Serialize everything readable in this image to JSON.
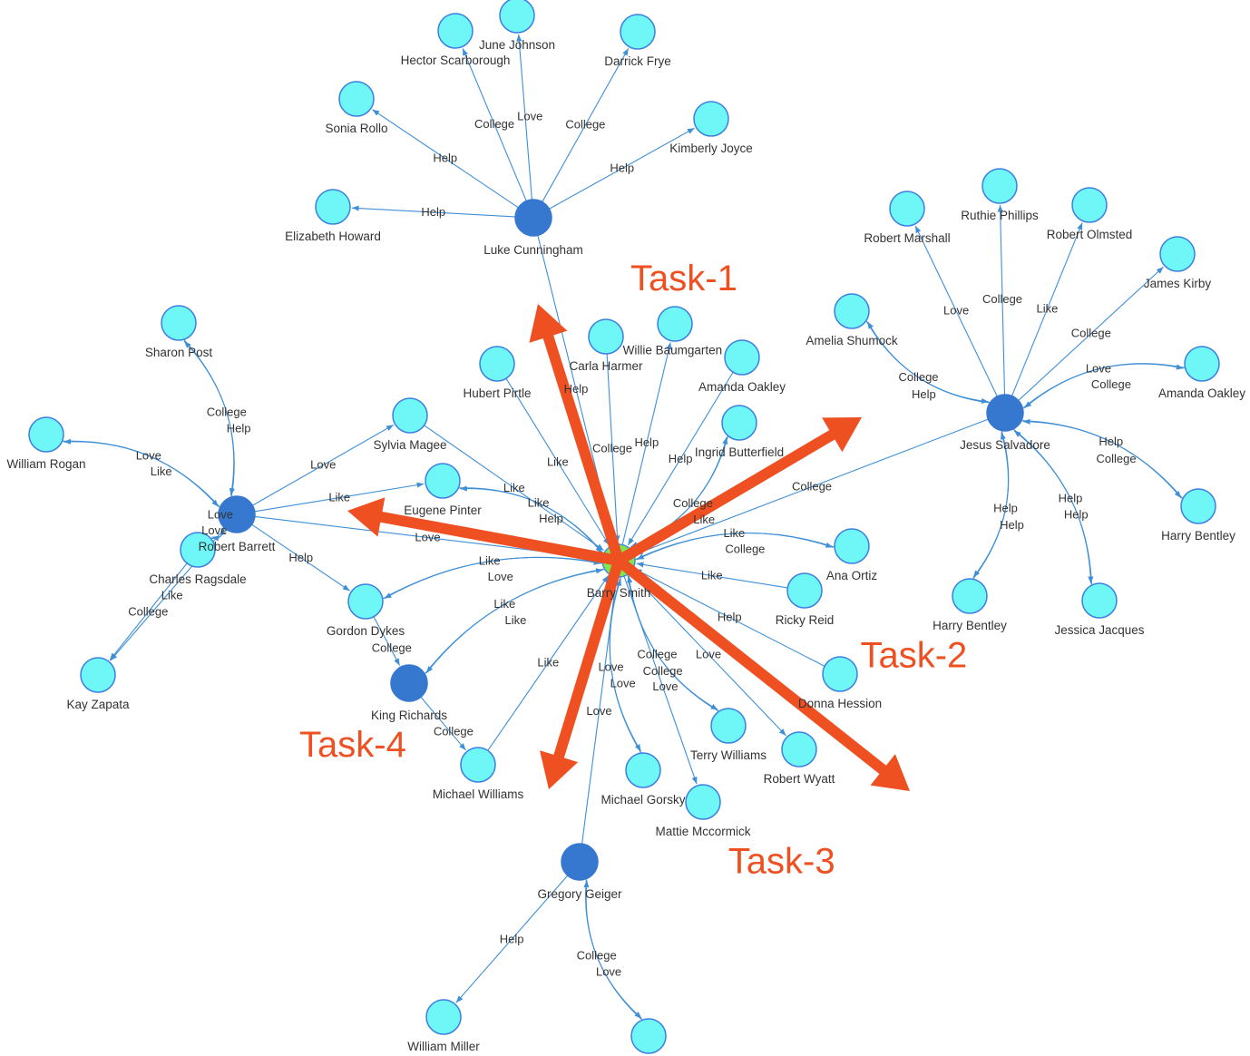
{
  "colors": {
    "hub": "#7ee84a",
    "hub_stroke": "#3d8fe0",
    "dark": "#3677cf",
    "node": "#6ff6f7",
    "node_stroke": "#3d7fe0",
    "edge": "#3f8fd6",
    "task": "#ee5022"
  },
  "nodes": [
    {
      "id": "barry",
      "label": "Barry Smith",
      "kind": "hub"
    },
    {
      "id": "luke",
      "label": "Luke Cunningham",
      "kind": "dark"
    },
    {
      "id": "rbarrett",
      "label": "Robert Barrett",
      "kind": "dark"
    },
    {
      "id": "jesus",
      "label": "Jesus Salvadore",
      "kind": "dark"
    },
    {
      "id": "king",
      "label": "King Richards",
      "kind": "dark"
    },
    {
      "id": "gregory",
      "label": "Gregory Geiger",
      "kind": "dark"
    },
    {
      "id": "hector",
      "label": "Hector Scarborough",
      "kind": "node"
    },
    {
      "id": "june",
      "label": "June Johnson",
      "kind": "node"
    },
    {
      "id": "darrick",
      "label": "Darrick Frye",
      "kind": "node"
    },
    {
      "id": "sonia",
      "label": "Sonia Rollo",
      "kind": "node"
    },
    {
      "id": "kimberly",
      "label": "Kimberly Joyce",
      "kind": "node"
    },
    {
      "id": "elizabeth",
      "label": "Elizabeth Howard",
      "kind": "node"
    },
    {
      "id": "sharon",
      "label": "Sharon Post",
      "kind": "node"
    },
    {
      "id": "wrogan",
      "label": "William Rogan",
      "kind": "node"
    },
    {
      "id": "sylvia",
      "label": "Sylvia Magee",
      "kind": "node"
    },
    {
      "id": "eugene",
      "label": "Eugene Pinter",
      "kind": "node"
    },
    {
      "id": "charles",
      "label": "Charles Ragsdale",
      "kind": "node"
    },
    {
      "id": "kay",
      "label": "Kay Zapata",
      "kind": "node"
    },
    {
      "id": "gordon",
      "label": "Gordon Dykes",
      "kind": "node"
    },
    {
      "id": "hubert",
      "label": "Hubert Pirtle",
      "kind": "node"
    },
    {
      "id": "carla",
      "label": "Carla Harmer",
      "kind": "node"
    },
    {
      "id": "willie",
      "label": "Willie Baumgarten",
      "kind": "node"
    },
    {
      "id": "amanda1",
      "label": "Amanda Oakley",
      "kind": "node"
    },
    {
      "id": "ingrid",
      "label": "Ingrid Butterfield",
      "kind": "node"
    },
    {
      "id": "ana",
      "label": "Ana Ortiz",
      "kind": "node"
    },
    {
      "id": "ricky",
      "label": "Ricky Reid",
      "kind": "node"
    },
    {
      "id": "donna",
      "label": "Donna Hession",
      "kind": "node"
    },
    {
      "id": "terry",
      "label": "Terry Williams",
      "kind": "node"
    },
    {
      "id": "rwyatt",
      "label": "Robert Wyatt",
      "kind": "node"
    },
    {
      "id": "mgorsky",
      "label": "Michael Gorsky",
      "kind": "node"
    },
    {
      "id": "mattie",
      "label": "Mattie Mccormick",
      "kind": "node"
    },
    {
      "id": "mwilliams",
      "label": "Michael Williams",
      "kind": "node"
    },
    {
      "id": "wmiller",
      "label": "William Miller",
      "kind": "node"
    },
    {
      "id": "unnamed",
      "label": "",
      "kind": "node"
    },
    {
      "id": "rmarshall",
      "label": "Robert Marshall",
      "kind": "node"
    },
    {
      "id": "ruthie",
      "label": "Ruthie Phillips",
      "kind": "node"
    },
    {
      "id": "rolmsted",
      "label": "Robert Olmsted",
      "kind": "node"
    },
    {
      "id": "jkirby",
      "label": "James Kirby",
      "kind": "node"
    },
    {
      "id": "amelia",
      "label": "Amelia Shumock",
      "kind": "node"
    },
    {
      "id": "amanda2",
      "label": "Amanda Oakley",
      "kind": "node"
    },
    {
      "id": "harry1",
      "label": "Harry Bentley",
      "kind": "node"
    },
    {
      "id": "harry2",
      "label": "Harry Bentley",
      "kind": "node"
    },
    {
      "id": "jessica",
      "label": "Jessica Jacques",
      "kind": "node"
    }
  ],
  "edges": [
    {
      "from": "luke",
      "to": "hector",
      "label": "College"
    },
    {
      "from": "luke",
      "to": "june",
      "label": "Love"
    },
    {
      "from": "luke",
      "to": "darrick",
      "label": "College"
    },
    {
      "from": "luke",
      "to": "sonia",
      "label": "Help"
    },
    {
      "from": "luke",
      "to": "kimberly",
      "label": "Help"
    },
    {
      "from": "luke",
      "to": "elizabeth",
      "label": "Help"
    },
    {
      "from": "luke",
      "to": "barry",
      "label": "Help"
    },
    {
      "from": "sharon",
      "to": "rbarrett",
      "label": "College"
    },
    {
      "from": "rbarrett",
      "to": "sharon",
      "label": "Help"
    },
    {
      "from": "wrogan",
      "to": "rbarrett",
      "label": "Love"
    },
    {
      "from": "rbarrett",
      "to": "wrogan",
      "label": "Like"
    },
    {
      "from": "rbarrett",
      "to": "sylvia",
      "label": "Love"
    },
    {
      "from": "rbarrett",
      "to": "eugene",
      "label": "Like"
    },
    {
      "from": "rbarrett",
      "to": "barry",
      "label": "Love"
    },
    {
      "from": "rbarrett",
      "to": "charles",
      "label": "Love"
    },
    {
      "from": "charles",
      "to": "rbarrett",
      "label": "Love"
    },
    {
      "from": "charles",
      "to": "kay",
      "label": "College"
    },
    {
      "from": "rbarrett",
      "to": "kay",
      "label": "Like"
    },
    {
      "from": "rbarrett",
      "to": "gordon",
      "label": "Help"
    },
    {
      "from": "hubert",
      "to": "barry",
      "label": "Like"
    },
    {
      "from": "carla",
      "to": "barry",
      "label": "College"
    },
    {
      "from": "barry",
      "to": "willie",
      "label": "Help"
    },
    {
      "from": "amanda1",
      "to": "barry",
      "label": "Help"
    },
    {
      "from": "ingrid",
      "to": "barry",
      "label": "College"
    },
    {
      "from": "barry",
      "to": "ingrid",
      "label": "Like"
    },
    {
      "from": "sylvia",
      "to": "barry",
      "label": "Like"
    },
    {
      "from": "eugene",
      "to": "barry",
      "label": "Like"
    },
    {
      "from": "barry",
      "to": "eugene",
      "label": "Help"
    },
    {
      "from": "jesus",
      "to": "barry",
      "label": "College"
    },
    {
      "from": "ana",
      "to": "barry",
      "label": "Like"
    },
    {
      "from": "barry",
      "to": "ana",
      "label": "College"
    },
    {
      "from": "ricky",
      "to": "barry",
      "label": "Like"
    },
    {
      "from": "donna",
      "to": "barry",
      "label": "Help"
    },
    {
      "from": "terry",
      "to": "barry",
      "label": "College"
    },
    {
      "from": "barry",
      "to": "terry",
      "label": "College"
    },
    {
      "from": "barry",
      "to": "rwyatt",
      "label": "Love"
    },
    {
      "from": "barry",
      "to": "mattie",
      "label": "Love"
    },
    {
      "from": "barry",
      "to": "mgorsky",
      "label": "Love"
    },
    {
      "from": "mgorsky",
      "to": "barry",
      "label": "Love"
    },
    {
      "from": "gregory",
      "to": "barry",
      "label": "Love"
    },
    {
      "from": "mwilliams",
      "to": "barry",
      "label": "Like"
    },
    {
      "from": "barry",
      "to": "king",
      "label": "Like"
    },
    {
      "from": "king",
      "to": "barry",
      "label": "Like"
    },
    {
      "from": "barry",
      "to": "gordon",
      "label": "Like"
    },
    {
      "from": "gordon",
      "to": "barry",
      "label": "Love"
    },
    {
      "from": "gordon",
      "to": "king",
      "label": "College"
    },
    {
      "from": "king",
      "to": "mwilliams",
      "label": "College"
    },
    {
      "from": "gregory",
      "to": "wmiller",
      "label": "Help"
    },
    {
      "from": "gregory",
      "to": "unnamed",
      "label": "College"
    },
    {
      "from": "unnamed",
      "to": "gregory",
      "label": "Love"
    },
    {
      "from": "jesus",
      "to": "rmarshall",
      "label": "Love"
    },
    {
      "from": "jesus",
      "to": "ruthie",
      "label": "College"
    },
    {
      "from": "jesus",
      "to": "rolmsted",
      "label": "Like"
    },
    {
      "from": "jesus",
      "to": "jkirby",
      "label": "College"
    },
    {
      "from": "jesus",
      "to": "amelia",
      "label": "College"
    },
    {
      "from": "amelia",
      "to": "jesus",
      "label": "Help"
    },
    {
      "from": "jesus",
      "to": "amanda2",
      "label": "Love"
    },
    {
      "from": "amanda2",
      "to": "jesus",
      "label": "College"
    },
    {
      "from": "harry1",
      "to": "jesus",
      "label": "Help"
    },
    {
      "from": "jesus",
      "to": "harry1",
      "label": "College"
    },
    {
      "from": "harry2",
      "to": "jesus",
      "label": "Help"
    },
    {
      "from": "jesus",
      "to": "harry2",
      "label": "Help"
    },
    {
      "from": "jessica",
      "to": "jesus",
      "label": "Help"
    },
    {
      "from": "jesus",
      "to": "jessica",
      "label": "Help"
    }
  ],
  "tasks": [
    {
      "id": "task1",
      "label": "Task-1"
    },
    {
      "id": "task2",
      "label": "Task-2"
    },
    {
      "id": "task3",
      "label": "Task-3"
    },
    {
      "id": "task4",
      "label": "Task-4"
    },
    {
      "id": "task5",
      "label": ""
    }
  ]
}
